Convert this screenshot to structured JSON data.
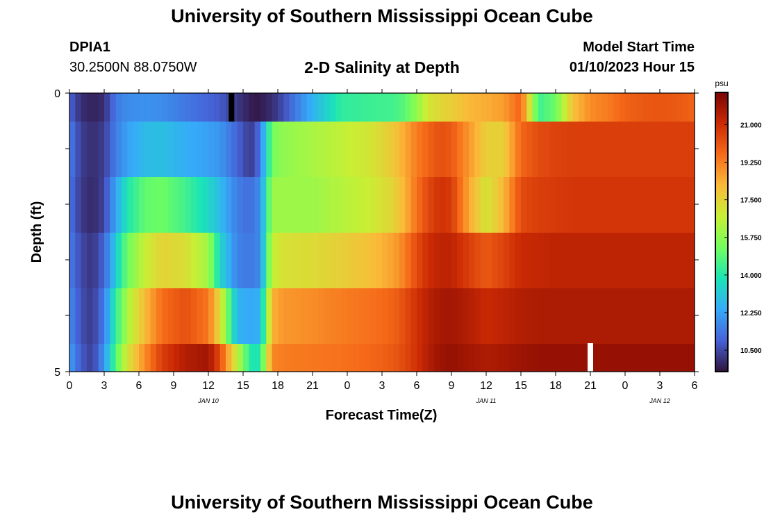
{
  "header": {
    "title": "University of Southern Mississippi Ocean Cube",
    "station": "DPIA1",
    "coords": "30.2500N  88.0750W",
    "subtitle": "2-D Salinity at Depth",
    "model_start_label": "Model Start Time",
    "model_start_value": "01/10/2023 Hour 15"
  },
  "footer": {
    "title": "University of Southern Mississippi Ocean Cube"
  },
  "chart_data": {
    "type": "heatmap",
    "title": "2-D Salinity at Depth",
    "xlabel": "Forecast Time(Z)",
    "ylabel": "Depth (ft)",
    "x_tick_labels": [
      "0",
      "3",
      "6",
      "9",
      "12",
      "15",
      "18",
      "21",
      "0",
      "3",
      "6",
      "9",
      "12",
      "15",
      "18",
      "21",
      "0",
      "3",
      "6"
    ],
    "date_labels": [
      {
        "text": "JAN 10",
        "tick_index": 4
      },
      {
        "text": "JAN 11",
        "tick_index": 12
      },
      {
        "text": "JAN 12",
        "tick_index": 17
      }
    ],
    "y_tick_labels": [
      "0",
      "5"
    ],
    "ylim": [
      0,
      5
    ],
    "depth_bands": [
      "0",
      "0.5-1.5",
      "1.5-2.5",
      "2.5-3.5",
      "3.5-4.5",
      "5"
    ],
    "colorbar": {
      "unit": "psu",
      "range": [
        9.5,
        22.5
      ],
      "ticks": [
        "21.000",
        "19.250",
        "17.500",
        "15.750",
        "14.000",
        "12.250",
        "10.500"
      ],
      "tick_values": [
        21.0,
        19.25,
        17.5,
        15.75,
        14.0,
        12.25,
        10.5
      ],
      "colors": [
        "#30123b",
        "#4662d7",
        "#36aaf9",
        "#1ae4b6",
        "#72fe5e",
        "#c8ef34",
        "#faba39",
        "#f66b19",
        "#cb2a04",
        "#7a0403"
      ]
    },
    "hour_keys": [
      0,
      2,
      4,
      6,
      8,
      10,
      13,
      16,
      20,
      24,
      26,
      29,
      31,
      32,
      33,
      35,
      37,
      42,
      47,
      52,
      56,
      58,
      60,
      62,
      64,
      66,
      69,
      72,
      75,
      78,
      81,
      84,
      87,
      90,
      93,
      96,
      99,
      102,
      105,
      108
    ],
    "salinity_psu": [
      [
        11.0,
        10.0,
        9.8,
        10.0,
        11.4,
        11.8,
        11.9,
        11.8,
        11.4,
        11.0,
        10.8,
        10.2,
        9.8,
        9.6,
        9.7,
        10.0,
        10.6,
        12.6,
        14.2,
        14.4,
        14.5,
        14.9,
        15.8,
        17.0,
        17.4,
        17.6,
        18.2,
        18.4,
        18.7,
        19.8,
        14.4,
        15.2,
        18.0,
        19.0,
        19.3,
        19.8,
        20.0,
        20.1,
        20.0,
        19.8
      ],
      [
        11.5,
        10.3,
        10.0,
        10.3,
        11.5,
        12.2,
        12.8,
        12.9,
        12.5,
        12.2,
        12.0,
        11.0,
        10.3,
        10.4,
        11.5,
        15.3,
        15.8,
        16.2,
        16.6,
        17.0,
        17.8,
        18.5,
        19.3,
        19.8,
        20.2,
        20.0,
        18.8,
        17.6,
        17.6,
        19.7,
        20.3,
        20.5,
        20.6,
        20.6,
        20.6,
        20.6,
        20.6,
        20.6,
        20.6,
        20.6
      ],
      [
        11.3,
        10.2,
        9.9,
        10.4,
        12.3,
        13.9,
        15.0,
        15.2,
        14.5,
        13.5,
        12.8,
        11.5,
        11.2,
        11.4,
        11.9,
        16.0,
        16.0,
        16.0,
        16.4,
        16.8,
        17.5,
        18.3,
        19.5,
        20.4,
        20.9,
        20.7,
        18.5,
        17.0,
        18.2,
        20.3,
        20.6,
        20.7,
        20.8,
        20.8,
        20.8,
        20.8,
        20.8,
        20.8,
        20.8,
        20.8
      ],
      [
        11.5,
        10.5,
        10.1,
        11.0,
        13.2,
        15.2,
        16.7,
        17.5,
        17.2,
        16.0,
        13.5,
        11.6,
        11.4,
        11.5,
        11.8,
        16.7,
        17.1,
        17.3,
        17.6,
        18.0,
        18.6,
        19.3,
        20.3,
        21.0,
        21.3,
        21.3,
        20.6,
        20.0,
        20.5,
        21.1,
        21.2,
        21.3,
        21.3,
        21.3,
        21.3,
        21.3,
        21.3,
        21.3,
        21.3,
        21.3
      ],
      [
        11.8,
        10.6,
        10.2,
        11.5,
        14.2,
        16.2,
        18.1,
        19.6,
        20.2,
        19.4,
        17.3,
        12.6,
        12.4,
        12.4,
        12.6,
        18.3,
        18.8,
        19.0,
        19.3,
        19.5,
        19.8,
        20.3,
        20.9,
        21.4,
        21.7,
        21.8,
        21.5,
        21.1,
        21.3,
        21.5,
        21.6,
        21.6,
        21.6,
        21.6,
        21.6,
        21.6,
        21.6,
        21.6,
        21.6,
        21.6
      ],
      [
        12.2,
        10.8,
        10.3,
        12.0,
        14.8,
        17.0,
        19.0,
        20.6,
        21.5,
        21.8,
        20.3,
        16.6,
        14.3,
        13.6,
        14.2,
        19.1,
        19.3,
        19.4,
        19.5,
        19.7,
        20.0,
        20.4,
        20.9,
        21.5,
        21.9,
        22.0,
        21.8,
        21.6,
        21.7,
        21.9,
        22.0,
        22.0,
        22.0,
        22.0,
        22.0,
        22.0,
        22.0,
        22.0,
        22.0,
        22.0
      ]
    ],
    "missing_marks": [
      {
        "depth_row": 0,
        "hour": 28,
        "color": "#000000"
      },
      {
        "depth_row": 5,
        "hour": 90,
        "color": "#ffffff"
      }
    ]
  }
}
